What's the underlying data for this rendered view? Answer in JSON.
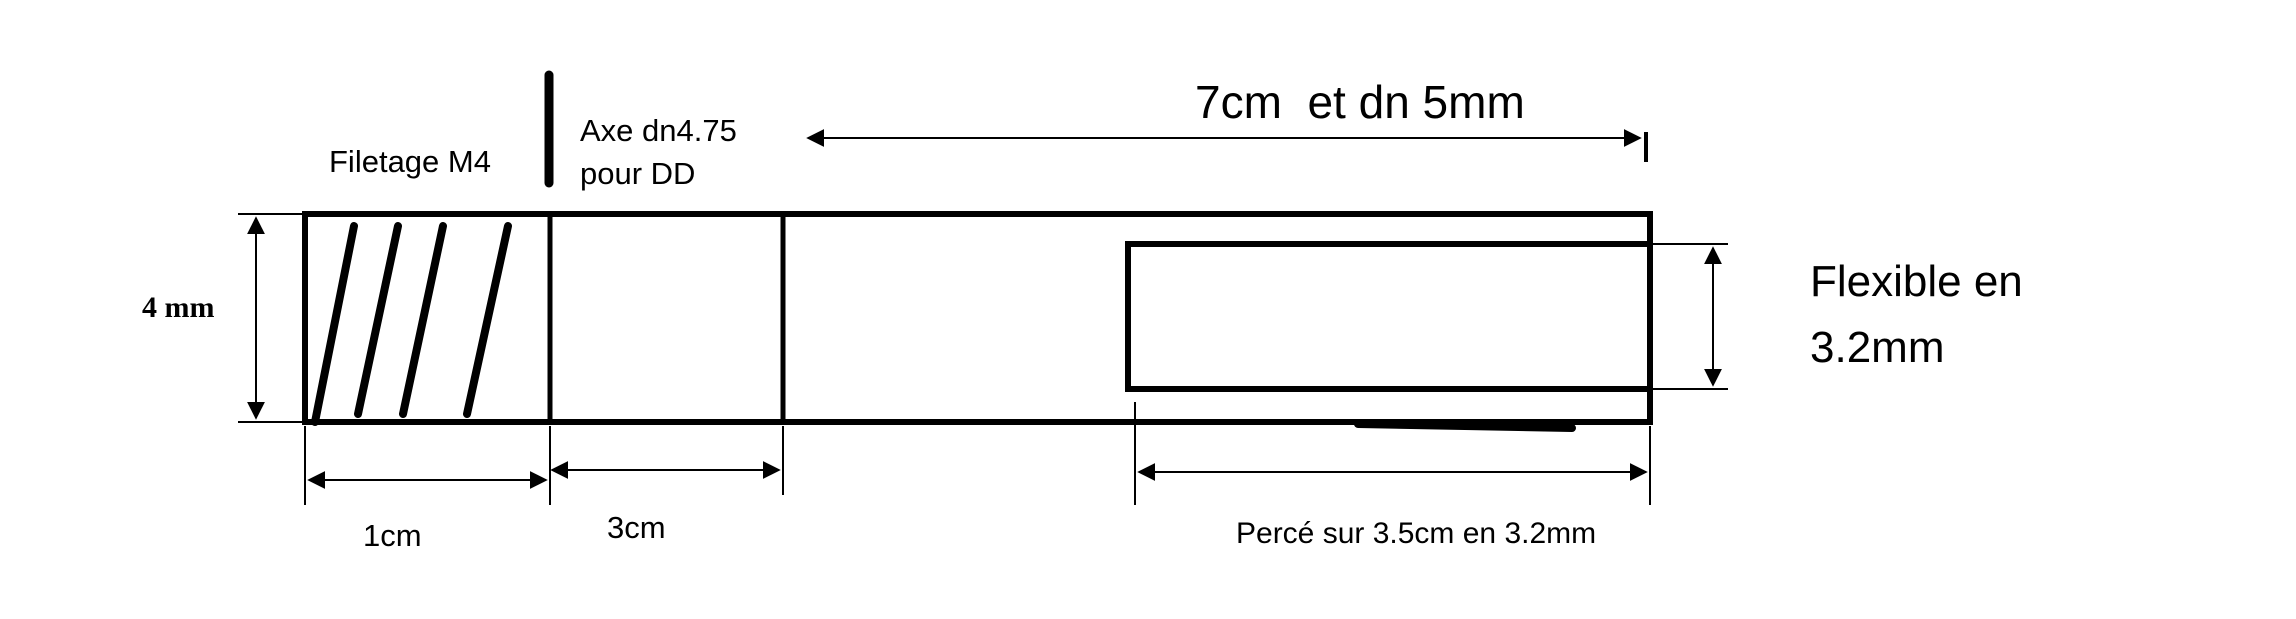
{
  "labels": {
    "threading": "Filetage M4",
    "axle_line1": "Axe dn4.75",
    "axle_line2": "pour DD",
    "total_length": "7cm  et dn 5mm",
    "diameter": "4 mm",
    "flexible_line1": "Flexible en",
    "flexible_line2": "3.2mm",
    "seg1_length": "1cm",
    "seg2_length": "3cm",
    "bore": "Percé sur 3.5cm en 3.2mm"
  },
  "colors": {
    "stroke": "#000000",
    "background": "#ffffff"
  }
}
